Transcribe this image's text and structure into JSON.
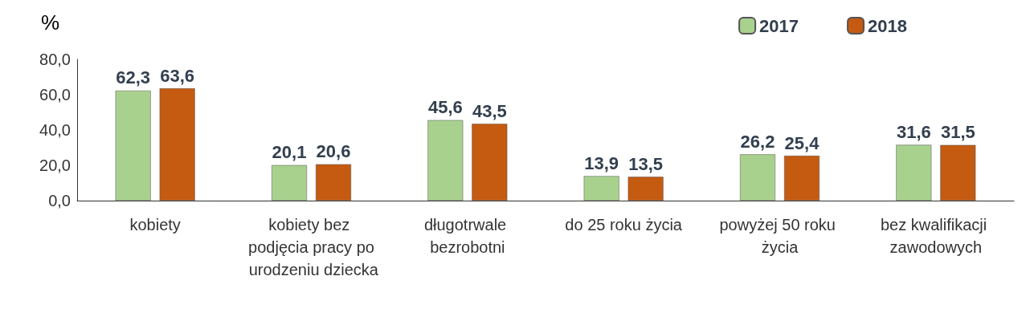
{
  "chart_data": {
    "type": "bar",
    "ylabel": "%",
    "categories": [
      "kobiety",
      "kobiety bez podjęcia pracy po urodzeniu dziecka",
      "długotrwale bezrobotni",
      "do 25 roku życia",
      "powyżej 50 roku życia",
      "bez kwalifikacji zawodowych"
    ],
    "series": [
      {
        "name": "2017",
        "color": "#a9d18e",
        "values": [
          62.3,
          20.1,
          45.6,
          13.9,
          26.2,
          31.6
        ],
        "value_labels": [
          "62,3",
          "20,1",
          "45,6",
          "13,9",
          "26,2",
          "31,6"
        ]
      },
      {
        "name": "2018",
        "color": "#c55a11",
        "values": [
          63.6,
          20.6,
          43.5,
          13.5,
          25.4,
          31.5
        ],
        "value_labels": [
          "63,6",
          "20,6",
          "43,5",
          "13,5",
          "25,4",
          "31,5"
        ]
      }
    ],
    "ylim": [
      0,
      80
    ],
    "yticks": [
      {
        "value": 0,
        "label": "0,0"
      },
      {
        "value": 20,
        "label": "20,0"
      },
      {
        "value": 40,
        "label": "40,0"
      },
      {
        "value": 60,
        "label": "60,0"
      },
      {
        "value": 80,
        "label": "80,0"
      }
    ],
    "grid": false,
    "legend": "top right"
  }
}
